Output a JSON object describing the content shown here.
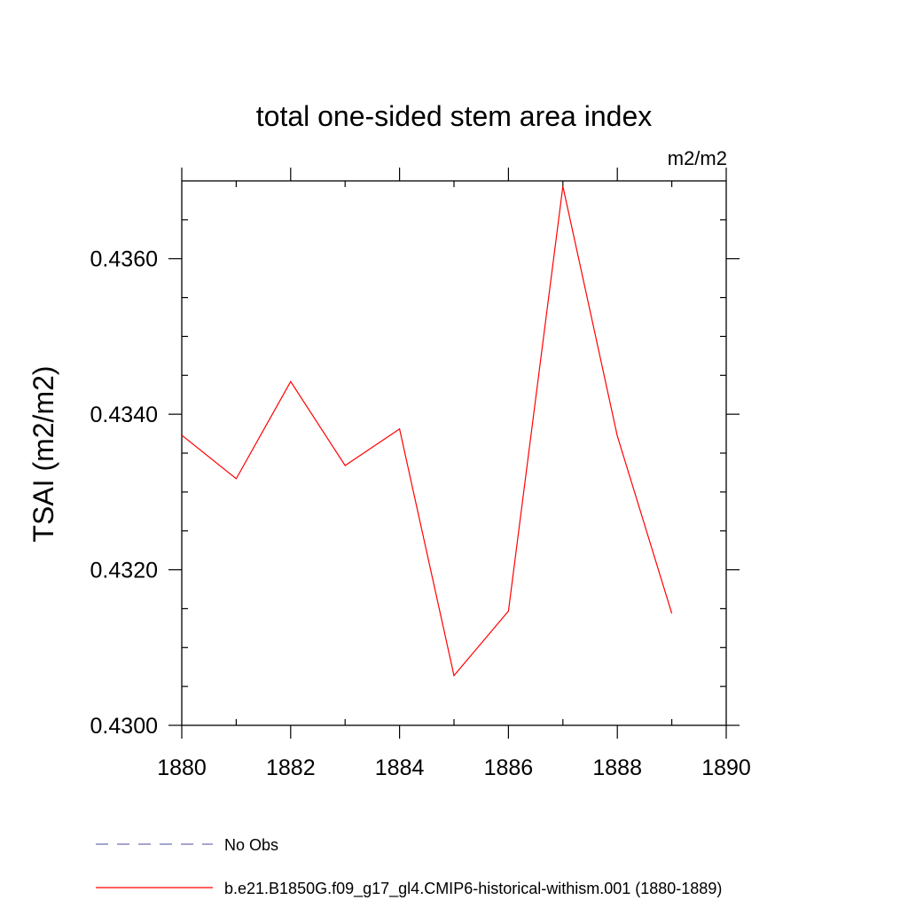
{
  "chart_data": {
    "type": "line",
    "title": "total one-sided stem area index",
    "units": "m2/m2",
    "ylabel": "TSAI  (m2/m2)",
    "xlabel": "",
    "xlim": [
      1880,
      1890
    ],
    "ylim": [
      0.43,
      0.437
    ],
    "x_ticks": [
      1880,
      1882,
      1884,
      1886,
      1888,
      1890
    ],
    "x_tick_labels": [
      "1880",
      "1882",
      "1884",
      "1886",
      "1888",
      "1890"
    ],
    "y_ticks": [
      0.43,
      0.432,
      0.434,
      0.436
    ],
    "y_tick_labels": [
      "0.4300",
      "0.4320",
      "0.4340",
      "0.4360"
    ],
    "grid": false,
    "legend_position": "bottom",
    "series": [
      {
        "name": "b.e21.B1850G.f09_g17_gl4.CMIP6-historical-withism.001 (1880-1889)",
        "color": "#ff0000",
        "style": "solid",
        "x": [
          1880,
          1881,
          1882,
          1883,
          1884,
          1885,
          1886,
          1887,
          1888,
          1889
        ],
        "values": [
          0.43373,
          0.43317,
          0.43442,
          0.43334,
          0.43381,
          0.43064,
          0.43147,
          0.43693,
          0.43372,
          0.43144
        ]
      }
    ],
    "legend": [
      {
        "name": "No Obs",
        "color": "#6f6fb0",
        "style": "dashed"
      },
      {
        "name": "b.e21.B1850G.f09_g17_gl4.CMIP6-historical-withism.001 (1880-1889)",
        "color": "#ff0000",
        "style": "solid"
      }
    ]
  }
}
